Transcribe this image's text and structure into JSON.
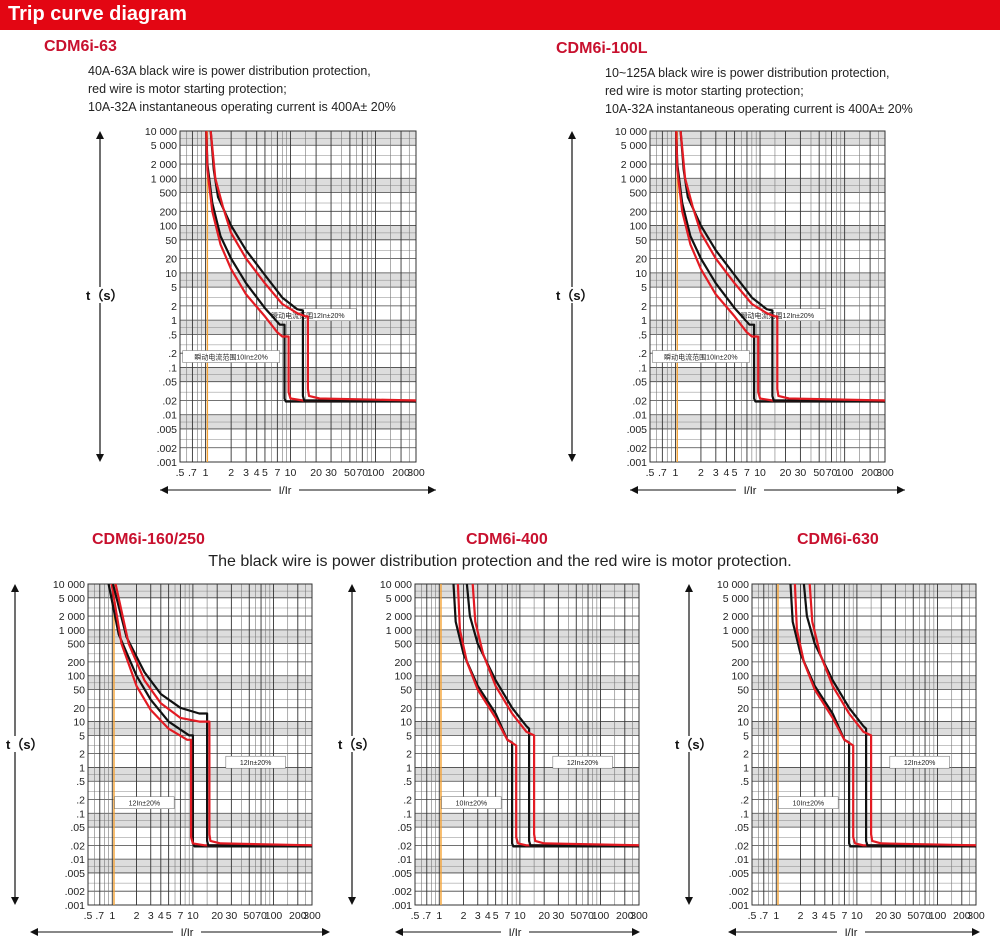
{
  "header": {
    "title": "Trip curve diagram",
    "color": "#e30613"
  },
  "shared_note": "The black wire is power distribution protection and the red wire is motor protection.",
  "colors": {
    "black_curve": "#111111",
    "red_curve": "#e31b23",
    "orange_line": "#f4a234",
    "grid": "#555555"
  },
  "chart_data": [
    {
      "type": "line",
      "title": "CDM6i-63",
      "description": [
        "40A-63A black wire is power distribution protection,",
        "red wire is motor starting protection;",
        "10A-32A instantaneous operating current is 400A± 20%"
      ],
      "xlabel": "I/Ir",
      "ylabel": "t（s）",
      "xscale": "log",
      "yscale": "log",
      "xlim": [
        0.5,
        300
      ],
      "ylim": [
        0.001,
        10000
      ],
      "xticks": [
        0.5,
        0.7,
        1,
        2,
        3,
        4,
        5,
        7,
        10,
        20,
        30,
        50,
        70,
        100,
        200,
        300
      ],
      "xtick_labels": [
        ".5",
        ".7",
        "1",
        "2",
        "3",
        "4",
        "5",
        "7",
        "10",
        "20",
        "30",
        "50",
        "70",
        "100",
        "200",
        "300"
      ],
      "yticks": [
        10000,
        5000,
        2000,
        1000,
        500,
        200,
        100,
        50,
        20,
        10,
        5,
        2,
        1,
        0.5,
        0.2,
        0.1,
        0.05,
        0.02,
        0.01,
        0.005,
        0.002,
        0.001
      ],
      "ytick_labels": [
        "10 000",
        "5 000",
        "2 000",
        "1 000",
        "500",
        "200",
        "100",
        "50",
        "20",
        "10",
        "5",
        "2",
        "1",
        ".5",
        ".2",
        ".1",
        ".05",
        ".02",
        ".01",
        ".005",
        ".002",
        ".001"
      ],
      "reference_line_x": 1.05,
      "annotations": [
        {
          "text": "瞬动电流范围12In±20%",
          "x": 16,
          "y": 1.3
        },
        {
          "text": "瞬动电流范围10In±20%",
          "x": 2,
          "y": 0.17
        }
      ],
      "series": [
        {
          "name": "black-lower",
          "color": "black",
          "x": [
            1.02,
            1.05,
            1.2,
            1.5,
            2,
            3,
            5,
            7.5,
            8.5,
            8.5,
            8.8,
            11,
            300
          ],
          "y": [
            10000,
            2000,
            300,
            60,
            20,
            6,
            1.8,
            0.8,
            0.8,
            0.022,
            0.019,
            0.019,
            0.019
          ]
        },
        {
          "name": "red-lower",
          "color": "red",
          "x": [
            1.02,
            1.05,
            1.2,
            1.5,
            2,
            3,
            5,
            7,
            8,
            9.5,
            9.5,
            10,
            14,
            300
          ],
          "y": [
            10000,
            1500,
            200,
            40,
            12,
            3.5,
            1.2,
            0.55,
            0.45,
            0.45,
            0.03,
            0.022,
            0.02,
            0.02
          ]
        },
        {
          "name": "black-upper",
          "color": "black",
          "x": [
            1.15,
            1.25,
            1.4,
            2,
            3,
            5,
            8,
            12,
            14,
            14,
            14.5,
            18,
            300
          ],
          "y": [
            10000,
            1500,
            400,
            100,
            30,
            9,
            3,
            1.7,
            1.6,
            0.025,
            0.02,
            0.02,
            0.019
          ]
        },
        {
          "name": "red-upper",
          "color": "red",
          "x": [
            1.15,
            1.3,
            1.6,
            2,
            3,
            5,
            8,
            12,
            15,
            16,
            16,
            16.5,
            22,
            300
          ],
          "y": [
            10000,
            1000,
            250,
            70,
            20,
            6,
            2.2,
            1.4,
            1.2,
            1.2,
            0.035,
            0.025,
            0.022,
            0.02
          ]
        }
      ]
    },
    {
      "type": "line",
      "title": "CDM6i-100L",
      "description": [
        "10~125A black wire is power distribution protection,",
        "red wire is motor starting protection;",
        "10A-32A instantaneous operating current is 400A± 20%"
      ],
      "xlabel": "I/Ir",
      "ylabel": "t（s）",
      "xscale": "log",
      "yscale": "log",
      "xlim": [
        0.5,
        300
      ],
      "ylim": [
        0.001,
        10000
      ],
      "xticks": [
        0.5,
        0.7,
        1,
        2,
        3,
        4,
        5,
        7,
        10,
        20,
        30,
        50,
        70,
        100,
        200,
        300
      ],
      "xtick_labels": [
        ".5",
        ".7",
        "1",
        "2",
        "3",
        "4",
        "5",
        "7",
        "10",
        "20",
        "30",
        "50",
        "70",
        "100",
        "200",
        "300"
      ],
      "yticks": [
        10000,
        5000,
        2000,
        1000,
        500,
        200,
        100,
        50,
        20,
        10,
        5,
        2,
        1,
        0.5,
        0.2,
        0.1,
        0.05,
        0.02,
        0.01,
        0.005,
        0.002,
        0.001
      ],
      "ytick_labels": [
        "10 000",
        "5 000",
        "2 000",
        "1 000",
        "500",
        "200",
        "100",
        "50",
        "20",
        "10",
        "5",
        "2",
        "1",
        ".5",
        ".2",
        ".1",
        ".05",
        ".02",
        ".01",
        ".005",
        ".002",
        ".001"
      ],
      "reference_line_x": 1.05,
      "annotations": [
        {
          "text": "瞬动电流范围12In±20%",
          "x": 16,
          "y": 1.3
        },
        {
          "text": "瞬动电流范围10In±20%",
          "x": 2,
          "y": 0.17
        }
      ],
      "series": [
        {
          "name": "black-lower",
          "color": "black",
          "x": [
            1.02,
            1.05,
            1.2,
            1.5,
            2,
            3,
            5,
            7.5,
            8.5,
            8.5,
            8.8,
            11,
            300
          ],
          "y": [
            10000,
            2000,
            300,
            60,
            20,
            6,
            1.8,
            0.8,
            0.8,
            0.022,
            0.019,
            0.019,
            0.019
          ]
        },
        {
          "name": "red-lower",
          "color": "red",
          "x": [
            1.02,
            1.05,
            1.2,
            1.5,
            2,
            3,
            5,
            7,
            8,
            9.5,
            9.5,
            10,
            14,
            300
          ],
          "y": [
            10000,
            1500,
            200,
            40,
            12,
            3.5,
            1.2,
            0.55,
            0.45,
            0.45,
            0.03,
            0.022,
            0.02,
            0.02
          ]
        },
        {
          "name": "black-upper",
          "color": "black",
          "x": [
            1.15,
            1.25,
            1.4,
            2,
            3,
            5,
            8,
            12,
            14,
            14,
            14.5,
            18,
            300
          ],
          "y": [
            10000,
            1500,
            400,
            100,
            30,
            9,
            3,
            1.7,
            1.6,
            0.025,
            0.02,
            0.02,
            0.019
          ]
        },
        {
          "name": "red-upper",
          "color": "red",
          "x": [
            1.15,
            1.3,
            1.6,
            2,
            3,
            5,
            8,
            12,
            15,
            16,
            16,
            16.5,
            22,
            300
          ],
          "y": [
            10000,
            1000,
            250,
            70,
            20,
            6,
            2.2,
            1.4,
            1.2,
            1.2,
            0.035,
            0.025,
            0.022,
            0.02
          ]
        }
      ]
    },
    {
      "type": "line",
      "title": "CDM6i-160/250",
      "xlabel": "I/Ir",
      "ylabel": "t（s）",
      "xscale": "log",
      "yscale": "log",
      "xlim": [
        0.5,
        300
      ],
      "ylim": [
        0.001,
        10000
      ],
      "xticks": [
        0.5,
        0.7,
        1,
        2,
        3,
        4,
        5,
        7,
        10,
        20,
        30,
        50,
        70,
        100,
        200,
        300
      ],
      "xtick_labels": [
        ".5",
        ".7",
        "1",
        "2",
        "3",
        "4",
        "5",
        "7",
        "10",
        "20",
        "30",
        "50",
        "70",
        "100",
        "200",
        "300"
      ],
      "yticks": [
        10000,
        5000,
        2000,
        1000,
        500,
        200,
        100,
        50,
        20,
        10,
        5,
        2,
        1,
        0.5,
        0.2,
        0.1,
        0.05,
        0.02,
        0.01,
        0.005,
        0.002,
        0.001
      ],
      "ytick_labels": [
        "10 000",
        "5 000",
        "2 000",
        "1 000",
        "500",
        "200",
        "100",
        "50",
        "20",
        "10",
        "5",
        "2",
        "1",
        ".5",
        ".2",
        ".1",
        ".05",
        ".02",
        ".01",
        ".005",
        ".002",
        ".001"
      ],
      "reference_line_x": 1.05,
      "annotations": [
        {
          "text": "12In±20%",
          "x": 60,
          "y": 1.3
        },
        {
          "text": "12In±20%",
          "x": 2.5,
          "y": 0.17
        }
      ],
      "series": [
        {
          "name": "black-lower",
          "color": "black",
          "x": [
            0.9,
            1.2,
            2,
            3,
            5,
            9,
            10,
            10,
            10.5,
            13,
            300
          ],
          "y": [
            10000,
            800,
            100,
            30,
            10,
            5,
            5,
            0.022,
            0.019,
            0.019,
            0.019
          ]
        },
        {
          "name": "red-lower",
          "color": "red",
          "x": [
            0.98,
            1.3,
            2,
            3,
            5,
            8.5,
            9.5,
            9.5,
            10,
            14,
            300
          ],
          "y": [
            10000,
            500,
            60,
            18,
            7,
            4,
            4,
            0.03,
            0.022,
            0.02,
            0.02
          ]
        },
        {
          "name": "black-upper",
          "color": "black",
          "x": [
            1.02,
            1.5,
            2.5,
            4,
            7,
            12,
            15,
            15,
            15.5,
            20,
            300
          ],
          "y": [
            10000,
            700,
            120,
            40,
            20,
            15,
            15,
            0.025,
            0.02,
            0.02,
            0.019
          ]
        },
        {
          "name": "red-upper",
          "color": "red",
          "x": [
            1.1,
            1.6,
            2.5,
            4,
            7,
            12,
            16,
            16,
            16.5,
            22,
            300
          ],
          "y": [
            10000,
            500,
            80,
            25,
            12,
            10,
            10,
            0.035,
            0.025,
            0.022,
            0.02
          ]
        }
      ]
    },
    {
      "type": "line",
      "title": "CDM6i-400",
      "xlabel": "I/Ir",
      "ylabel": "t（s）",
      "xscale": "log",
      "yscale": "log",
      "xlim": [
        0.5,
        300
      ],
      "ylim": [
        0.001,
        10000
      ],
      "xticks": [
        0.5,
        0.7,
        1,
        2,
        3,
        4,
        5,
        7,
        10,
        20,
        30,
        50,
        70,
        100,
        200,
        300
      ],
      "xtick_labels": [
        ".5",
        ".7",
        "1",
        "2",
        "3",
        "4",
        "5",
        "7",
        "10",
        "20",
        "30",
        "50",
        "70",
        "100",
        "200",
        "300"
      ],
      "yticks": [
        10000,
        5000,
        2000,
        1000,
        500,
        200,
        100,
        50,
        20,
        10,
        5,
        2,
        1,
        0.5,
        0.2,
        0.1,
        0.05,
        0.02,
        0.01,
        0.005,
        0.002,
        0.001
      ],
      "ytick_labels": [
        "10 000",
        "5 000",
        "2 000",
        "1 000",
        "500",
        "200",
        "100",
        "50",
        "20",
        "10",
        "5",
        "2",
        "1",
        ".5",
        ".2",
        ".1",
        ".05",
        ".02",
        ".01",
        ".005",
        ".002",
        ".001"
      ],
      "reference_line_x": 1.05,
      "annotations": [
        {
          "text": "12In±20%",
          "x": 60,
          "y": 1.3
        },
        {
          "text": "10In±20%",
          "x": 2.5,
          "y": 0.17
        }
      ],
      "series": [
        {
          "name": "black-lower",
          "color": "black",
          "x": [
            1.5,
            1.6,
            2,
            3,
            5,
            7,
            8,
            8,
            8.3,
            10,
            300
          ],
          "y": [
            10000,
            1500,
            300,
            60,
            15,
            4,
            3.5,
            0.022,
            0.019,
            0.019,
            0.019
          ]
        },
        {
          "name": "red-lower",
          "color": "red",
          "x": [
            1.7,
            1.8,
            2.2,
            3,
            5,
            7,
            9,
            9,
            9.5,
            12,
            300
          ],
          "y": [
            10000,
            1000,
            200,
            50,
            12,
            4,
            3,
            0.03,
            0.022,
            0.02,
            0.02
          ]
        },
        {
          "name": "black-upper",
          "color": "black",
          "x": [
            2.2,
            2.4,
            3,
            5,
            8,
            12,
            13,
            13,
            13.5,
            16,
            300
          ],
          "y": [
            10000,
            2000,
            500,
            80,
            20,
            8,
            7,
            0.025,
            0.02,
            0.02,
            0.019
          ]
        },
        {
          "name": "red-upper",
          "color": "red",
          "x": [
            2.6,
            2.8,
            3.5,
            5,
            8,
            12,
            15,
            15,
            15.5,
            20,
            300
          ],
          "y": [
            10000,
            1500,
            300,
            60,
            15,
            6,
            5,
            0.035,
            0.025,
            0.022,
            0.02
          ]
        }
      ]
    },
    {
      "type": "line",
      "title": "CDM6i-630",
      "xlabel": "I/Ir",
      "ylabel": "t（s）",
      "xscale": "log",
      "yscale": "log",
      "xlim": [
        0.5,
        300
      ],
      "ylim": [
        0.001,
        10000
      ],
      "xticks": [
        0.5,
        0.7,
        1,
        2,
        3,
        4,
        5,
        7,
        10,
        20,
        30,
        50,
        70,
        100,
        200,
        300
      ],
      "xtick_labels": [
        ".5",
        ".7",
        "1",
        "2",
        "3",
        "4",
        "5",
        "7",
        "10",
        "20",
        "30",
        "50",
        "70",
        "100",
        "200",
        "300"
      ],
      "yticks": [
        10000,
        5000,
        2000,
        1000,
        500,
        200,
        100,
        50,
        20,
        10,
        5,
        2,
        1,
        0.5,
        0.2,
        0.1,
        0.05,
        0.02,
        0.01,
        0.005,
        0.002,
        0.001
      ],
      "ytick_labels": [
        "10 000",
        "5 000",
        "2 000",
        "1 000",
        "500",
        "200",
        "100",
        "50",
        "20",
        "10",
        "5",
        "2",
        "1",
        ".5",
        ".2",
        ".1",
        ".05",
        ".02",
        ".01",
        ".005",
        ".002",
        ".001"
      ],
      "reference_line_x": 1.05,
      "annotations": [
        {
          "text": "12In±20%",
          "x": 60,
          "y": 1.3
        },
        {
          "text": "10In±20%",
          "x": 2.5,
          "y": 0.17
        }
      ],
      "series": [
        {
          "name": "black-lower",
          "color": "black",
          "x": [
            1.5,
            1.6,
            2,
            3,
            5,
            7,
            8,
            8,
            8.3,
            10,
            300
          ],
          "y": [
            10000,
            1500,
            300,
            60,
            15,
            4,
            3.5,
            0.022,
            0.019,
            0.019,
            0.019
          ]
        },
        {
          "name": "red-lower",
          "color": "red",
          "x": [
            1.7,
            1.8,
            2.2,
            3,
            5,
            7,
            9,
            9,
            9.5,
            12,
            300
          ],
          "y": [
            10000,
            1000,
            200,
            50,
            12,
            4,
            3,
            0.03,
            0.022,
            0.02,
            0.02
          ]
        },
        {
          "name": "black-upper",
          "color": "black",
          "x": [
            2.2,
            2.4,
            3,
            5,
            8,
            12,
            13,
            13,
            13.5,
            16,
            300
          ],
          "y": [
            10000,
            2000,
            500,
            80,
            20,
            8,
            7,
            0.025,
            0.02,
            0.02,
            0.019
          ]
        },
        {
          "name": "red-upper",
          "color": "red",
          "x": [
            2.6,
            2.8,
            3.5,
            5,
            8,
            12,
            15,
            15,
            15.5,
            20,
            300
          ],
          "y": [
            10000,
            1500,
            300,
            60,
            15,
            6,
            5,
            0.035,
            0.025,
            0.022,
            0.02
          ]
        }
      ]
    }
  ]
}
